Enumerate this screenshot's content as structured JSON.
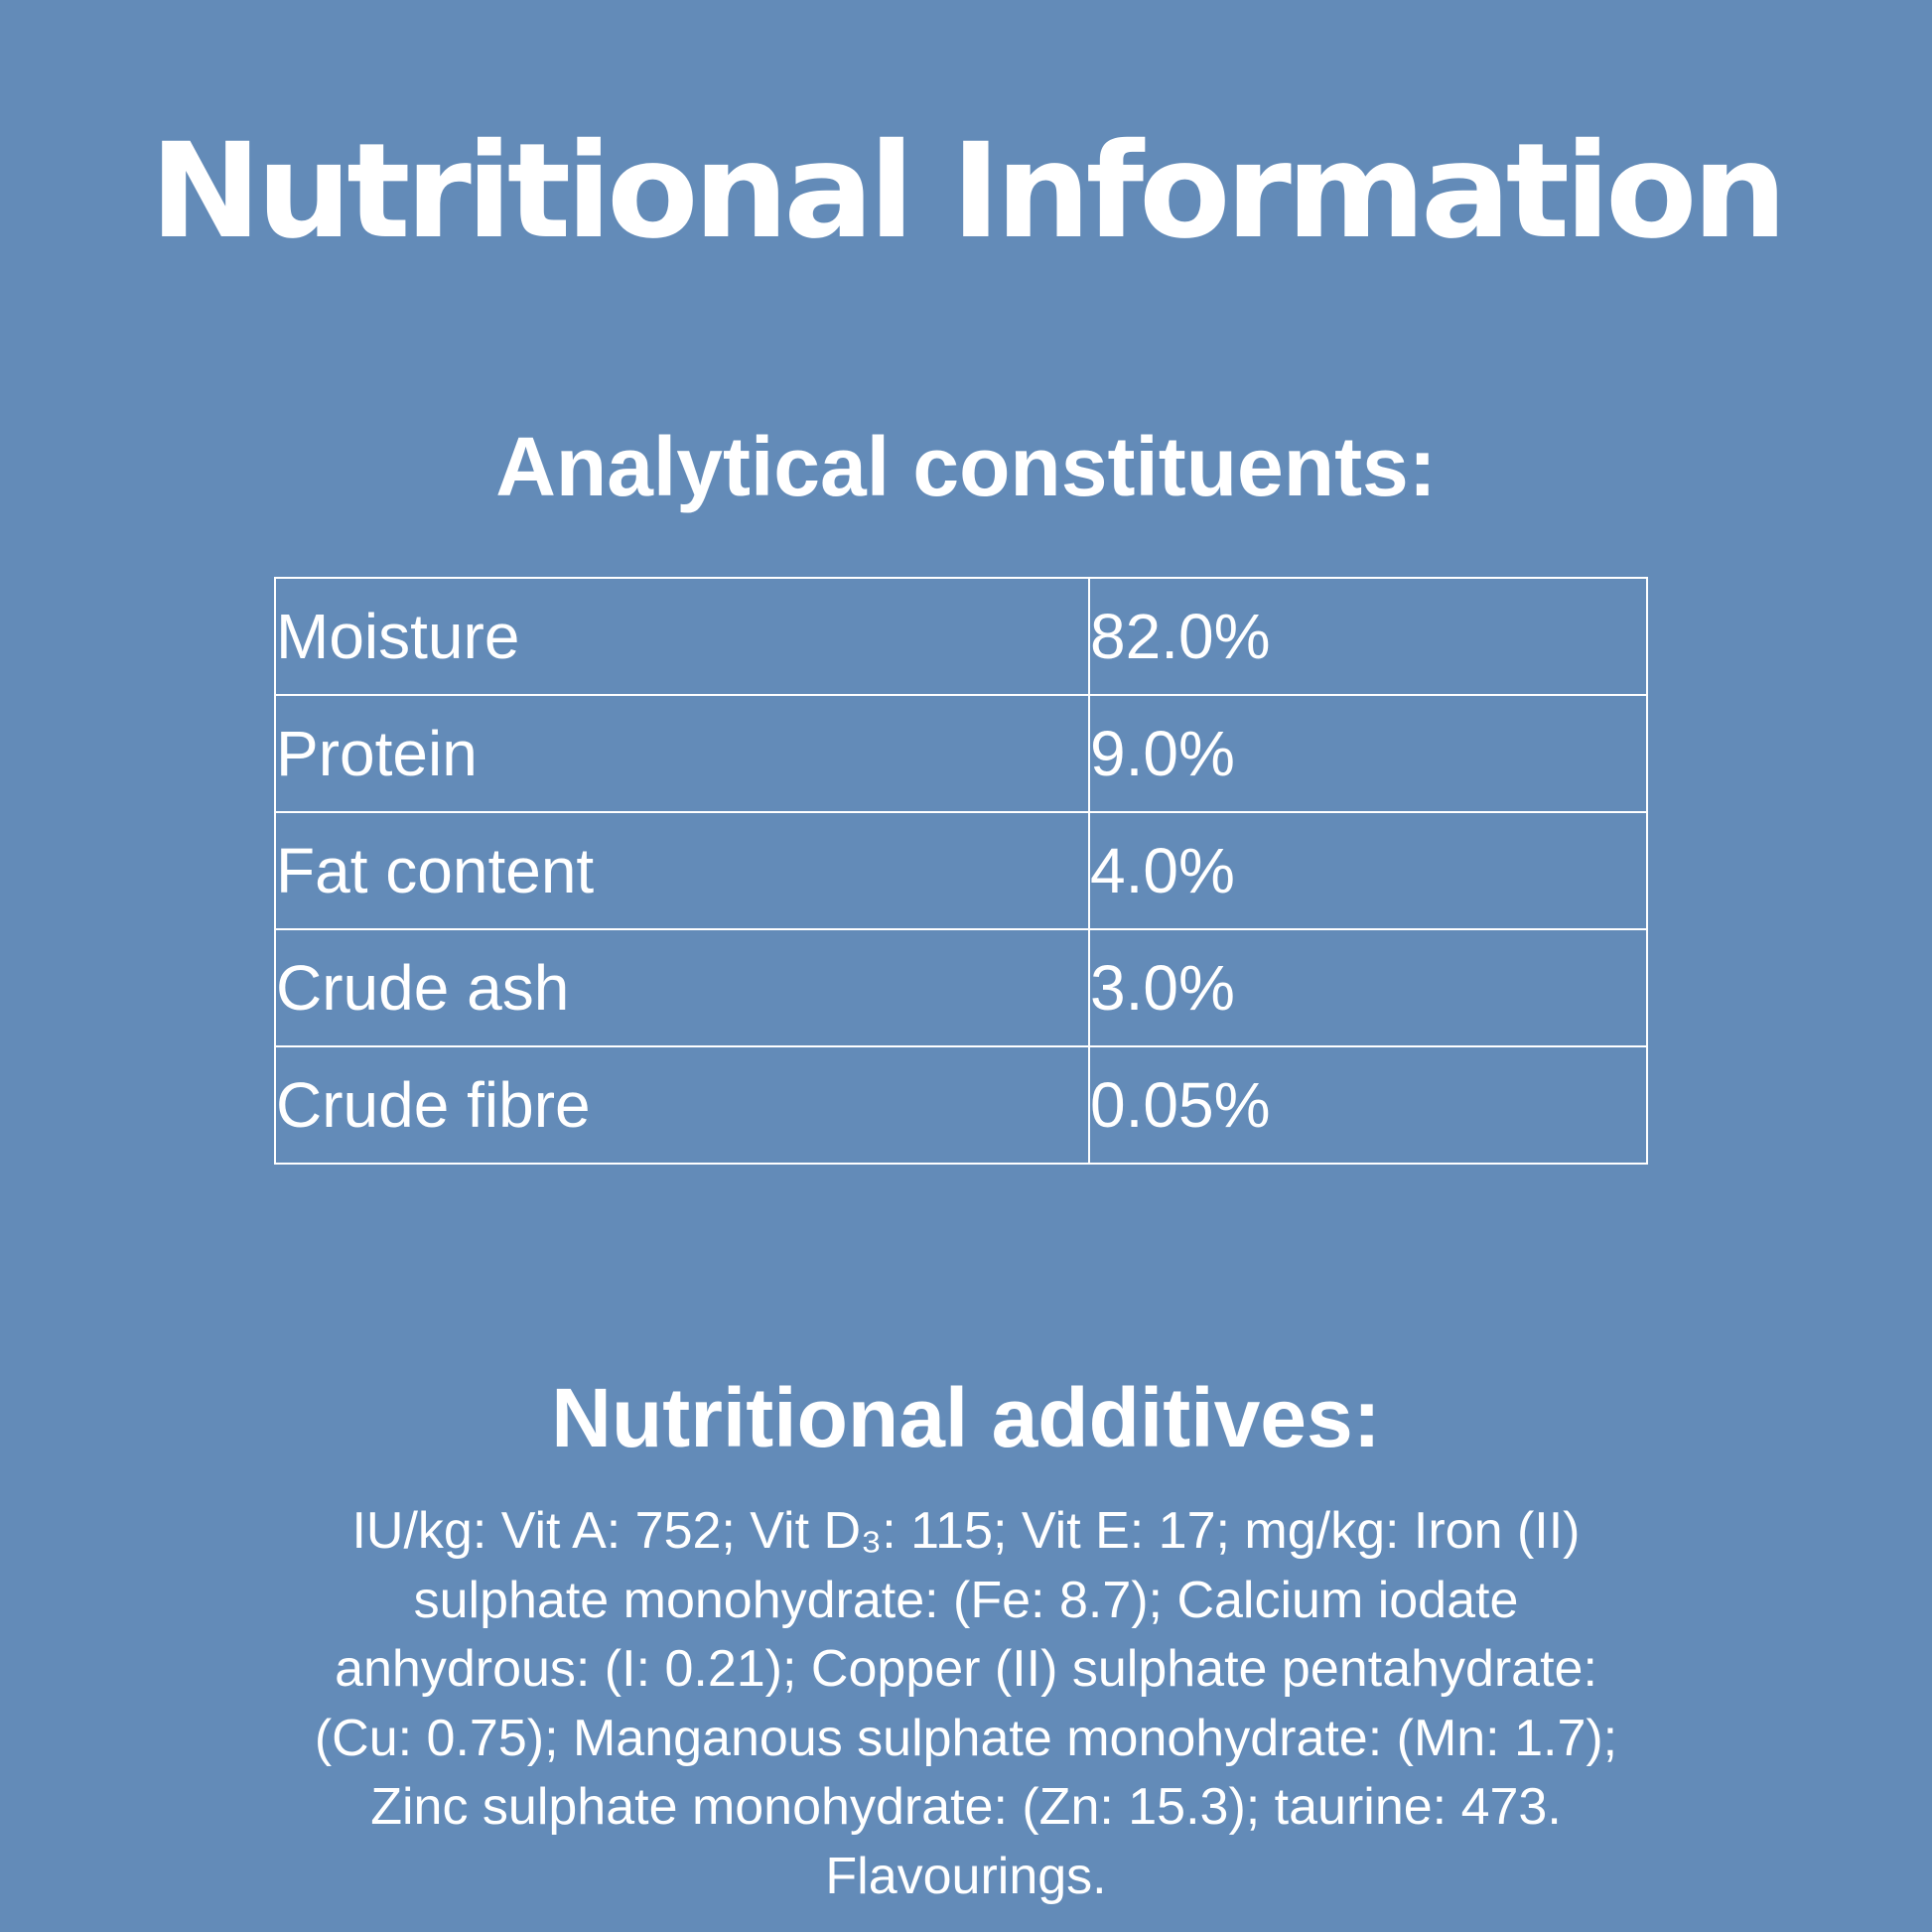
{
  "title": "Nutritional Information",
  "analytical": {
    "heading": "Analytical constituents:",
    "rows": [
      {
        "label": "Moisture",
        "value": "82.0%"
      },
      {
        "label": "Protein",
        "value": "9.0%"
      },
      {
        "label": "Fat content",
        "value": "4.0%"
      },
      {
        "label": "Crude ash",
        "value": "3.0%"
      },
      {
        "label": "Crude fibre",
        "value": "0.05%"
      }
    ]
  },
  "additives": {
    "heading": "Nutritional additives:",
    "lines": [
      "IU/kg: Vit A: 752; Vit D₃: 115; Vit E: 17; mg/kg: Iron (II)",
      "sulphate monohydrate: (Fe: 8.7); Calcium iodate",
      "anhydrous: (I: 0.21); Copper (II) sulphate pentahydrate:",
      "(Cu: 0.75); Manganous sulphate monohydrate: (Mn: 1.7);",
      "Zinc sulphate monohydrate: (Zn: 15.3); taurine: 473.",
      "Flavourings."
    ]
  },
  "colors": {
    "background": "#638bb8",
    "text": "#ffffff"
  }
}
